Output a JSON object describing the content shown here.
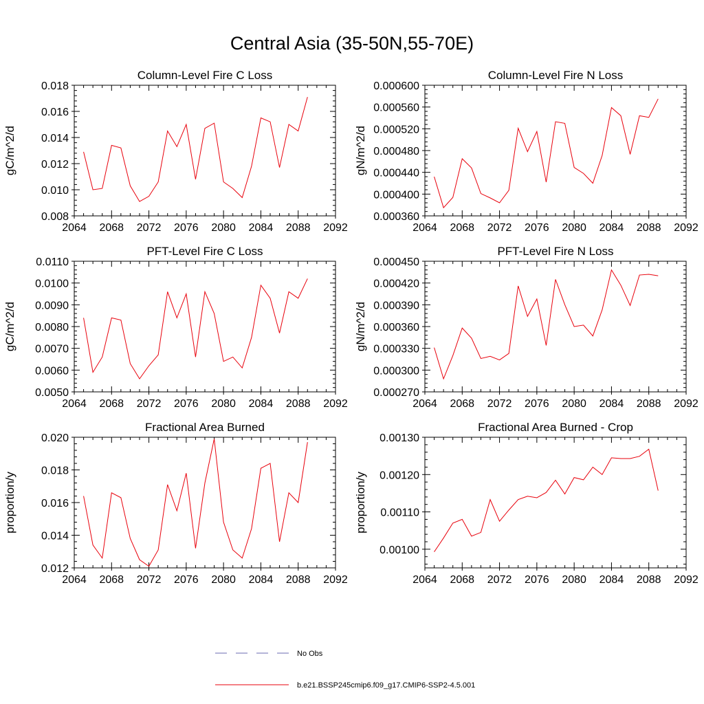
{
  "page_title": "Central Asia (35-50N,55-70E)",
  "x_axis": {
    "range": [
      2064,
      2092
    ],
    "ticks": [
      2064,
      2068,
      2072,
      2076,
      2080,
      2084,
      2088,
      2092
    ],
    "years": [
      2065,
      2066,
      2067,
      2068,
      2069,
      2070,
      2071,
      2072,
      2073,
      2074,
      2075,
      2076,
      2077,
      2078,
      2079,
      2080,
      2081,
      2082,
      2083,
      2084,
      2085,
      2086,
      2087,
      2088,
      2089
    ]
  },
  "chart_data": [
    {
      "type": "line",
      "title": "Column-Level Fire C Loss",
      "ylabel": "gC/m^2/d",
      "ylim": [
        0.008,
        0.018
      ],
      "yticks": [
        "0.008",
        "0.010",
        "0.012",
        "0.014",
        "0.016",
        "0.018"
      ],
      "series": [
        {
          "values": [
            0.0129,
            0.01,
            0.0101,
            0.0134,
            0.0132,
            0.0103,
            0.0091,
            0.0095,
            0.0106,
            0.0145,
            0.0133,
            0.015,
            0.0108,
            0.0147,
            0.0151,
            0.0106,
            0.0101,
            0.0094,
            0.0118,
            0.0155,
            0.0152,
            0.0117,
            0.015,
            0.0145,
            0.0171
          ],
          "color": "#e8000b"
        }
      ]
    },
    {
      "type": "line",
      "title": "Column-Level Fire N Loss",
      "ylabel": "gN/m^2/d",
      "ylim": [
        0.00036,
        0.0006
      ],
      "yticks": [
        "0.000360",
        "0.000400",
        "0.000440",
        "0.000480",
        "0.000520",
        "0.000560",
        "0.000600"
      ],
      "series": [
        {
          "values": [
            0.000432,
            0.000375,
            0.000394,
            0.000465,
            0.000448,
            0.000401,
            0.000393,
            0.000384,
            0.000407,
            0.000521,
            0.000478,
            0.000515,
            0.000422,
            0.000533,
            0.00053,
            0.000449,
            0.000438,
            0.00042,
            0.000471,
            0.000559,
            0.000544,
            0.000473,
            0.000544,
            0.000541,
            0.000575
          ],
          "color": "#e8000b"
        }
      ]
    },
    {
      "type": "line",
      "title": "PFT-Level Fire C Loss",
      "ylabel": "gC/m^2/d",
      "ylim": [
        0.005,
        0.011
      ],
      "yticks": [
        "0.0050",
        "0.0060",
        "0.0070",
        "0.0080",
        "0.0090",
        "0.0100",
        "0.0110"
      ],
      "series": [
        {
          "values": [
            0.0084,
            0.0059,
            0.0066,
            0.0084,
            0.0083,
            0.0063,
            0.0056,
            0.0062,
            0.0067,
            0.0096,
            0.0084,
            0.0095,
            0.0066,
            0.0096,
            0.0086,
            0.0064,
            0.0066,
            0.0061,
            0.0075,
            0.0099,
            0.0093,
            0.0077,
            0.0096,
            0.0093,
            0.0102
          ],
          "color": "#e8000b"
        }
      ]
    },
    {
      "type": "line",
      "title": "PFT-Level Fire N Loss",
      "ylabel": "gN/m^2/d",
      "ylim": [
        0.00027,
        0.00045
      ],
      "yticks": [
        "0.000270",
        "0.000300",
        "0.000330",
        "0.000360",
        "0.000390",
        "0.000420",
        "0.000450"
      ],
      "series": [
        {
          "values": [
            0.000331,
            0.000288,
            0.00032,
            0.000358,
            0.000344,
            0.000316,
            0.000319,
            0.000314,
            0.000323,
            0.000416,
            0.000374,
            0.000398,
            0.000334,
            0.000425,
            0.00039,
            0.00036,
            0.000362,
            0.000347,
            0.000383,
            0.000438,
            0.000417,
            0.000389,
            0.000431,
            0.000432,
            0.00043
          ],
          "color": "#e8000b"
        }
      ]
    },
    {
      "type": "line",
      "title": "Fractional Area Burned",
      "ylabel": "proportion/y",
      "ylim": [
        0.012,
        0.02
      ],
      "yticks": [
        "0.012",
        "0.014",
        "0.016",
        "0.018",
        "0.020"
      ],
      "series": [
        {
          "values": [
            0.0164,
            0.0134,
            0.0126,
            0.0166,
            0.0163,
            0.0138,
            0.0125,
            0.0121,
            0.0131,
            0.0171,
            0.0155,
            0.0178,
            0.0132,
            0.0172,
            0.0199,
            0.0148,
            0.0131,
            0.0126,
            0.0144,
            0.0181,
            0.0184,
            0.0136,
            0.0166,
            0.016,
            0.0197
          ],
          "color": "#e8000b"
        }
      ]
    },
    {
      "type": "line",
      "title": "Fractional Area Burned - Crop",
      "ylabel": "proportion/y",
      "ylim": [
        0.00095,
        0.0013
      ],
      "yticks": [
        "0.00100",
        "0.00110",
        "0.00120",
        "0.00130"
      ],
      "ytick_values": [
        0.001,
        0.0011,
        0.0012,
        0.0013
      ],
      "series": [
        {
          "values": [
            0.000993,
            0.00103,
            0.00107,
            0.00108,
            0.001035,
            0.001045,
            0.001133,
            0.001075,
            0.001105,
            0.001133,
            0.001142,
            0.001138,
            0.001152,
            0.001185,
            0.001148,
            0.001192,
            0.001186,
            0.00122,
            0.0012,
            0.001245,
            0.001243,
            0.001243,
            0.001249,
            0.001268,
            0.001157
          ],
          "color": "#e8000b"
        }
      ]
    }
  ],
  "legend": {
    "items": [
      {
        "label": "No Obs",
        "style": "dashed",
        "color": "#6a6ab0"
      },
      {
        "label": "b.e21.BSSP245cmip6.f09_g17.CMIP6-SSP2-4.5.001",
        "style": "solid",
        "color": "#e8000b"
      }
    ]
  }
}
